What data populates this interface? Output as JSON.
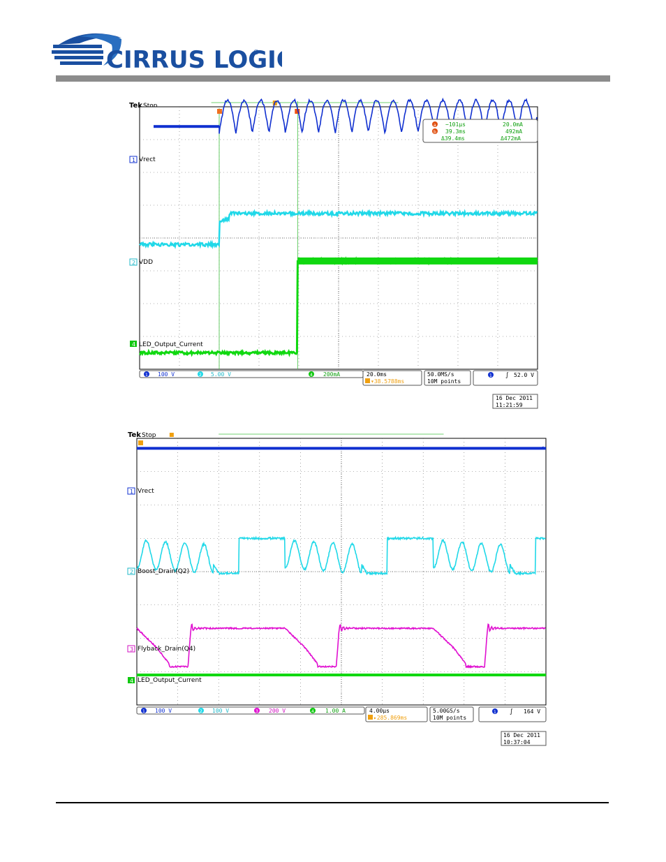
{
  "header": {
    "company": "CIRRUS LOGIC",
    "registered": "®"
  },
  "colors": {
    "ch1": "#1030d0",
    "ch2": "#20d8e8",
    "ch3": "#e010d0",
    "ch4": "#10d810",
    "cursor": "#f08020",
    "trigger": "#f0a010"
  },
  "chart_data": [
    {
      "type": "line",
      "brand": "Tek",
      "status": "Stop",
      "channels": [
        {
          "num": "1",
          "label": "Vrect",
          "scale": "100 V"
        },
        {
          "num": "2",
          "label": "VDD",
          "scale": "5.00 V"
        },
        {
          "num": "4",
          "label": "LED_Output_Current",
          "scale": "200mA"
        }
      ],
      "cursor_readout": {
        "a": {
          "id": "a",
          "time": "−101µs",
          "value": "20.0mA"
        },
        "b": {
          "id": "b",
          "time": "39.3ms",
          "value": "492mA"
        },
        "delta": {
          "time": "Δ39.4ms",
          "value": "Δ472mA"
        }
      },
      "timebase": {
        "horizontal": "20.0ms",
        "trigger_pos": "▾38.5788ms"
      },
      "acquisition": {
        "rate": "50.0MS/s",
        "points": "10M points"
      },
      "trigger": {
        "channel": "1",
        "level": "52.0 V"
      },
      "date": "16 Dec  2011",
      "time": "11:21:59",
      "x": {
        "unit": "ms",
        "per_div": 20,
        "range": [
          -40,
          160
        ]
      },
      "series": [
        {
          "name": "Vrect",
          "ch": "1",
          "description_values": {
            "pre_level_div": 3.4,
            "after": "full-wave rectified, peak 4.2 div, trough 3.2 div",
            "half_cycle_ms": 8.33,
            "start_ms": 0
          }
        },
        {
          "name": "VDD",
          "ch": "2",
          "description_values": {
            "pre_level_div": -0.2,
            "step1_ms": 0,
            "level1_div": 0.5,
            "level2_div": 0.75,
            "step2_ms": 5
          }
        },
        {
          "name": "LED_Output_Current",
          "ch": "4",
          "description_values": {
            "pre_level_div": -3.5,
            "step_ms": 39.4,
            "level_div": -0.7
          }
        }
      ]
    },
    {
      "type": "line",
      "brand": "Tek",
      "status": "Stop",
      "channels": [
        {
          "num": "1",
          "label": "Vrect",
          "scale": "100 V"
        },
        {
          "num": "2",
          "label": "Boost_Drain(Q2)",
          "scale": "100 V"
        },
        {
          "num": "3",
          "label": "Flyback_Drain(Q4)",
          "scale": "200 V"
        },
        {
          "num": "4",
          "label": "LED_Output_Current",
          "scale": "1.00 A"
        }
      ],
      "timebase": {
        "horizontal": "4.00µs",
        "trigger_pos": "▸285.869ms"
      },
      "acquisition": {
        "rate": "5.00GS/s",
        "points": "10M points"
      },
      "trigger": {
        "channel": "1",
        "level": "164 V"
      },
      "date": "16 Dec  2011",
      "time": "10:37:04",
      "x": {
        "unit": "µs",
        "per_div": 4,
        "range": [
          -20,
          20
        ]
      },
      "series": [
        {
          "name": "Vrect",
          "ch": "1",
          "description_values": {
            "level_div": 3.7
          }
        },
        {
          "name": "Boost_Drain(Q2)",
          "ch": "2",
          "description_values": {
            "period_us": 14.5,
            "high_div": 1.0,
            "low_div": -0.05
          }
        },
        {
          "name": "Flyback_Drain(Q4)",
          "ch": "3",
          "description_values": {
            "period_us": 14.5,
            "high_div": -1.7,
            "low_div": -2.85
          }
        },
        {
          "name": "LED_Output_Current",
          "ch": "4",
          "description_values": {
            "level_div": -3.1
          }
        }
      ]
    }
  ]
}
